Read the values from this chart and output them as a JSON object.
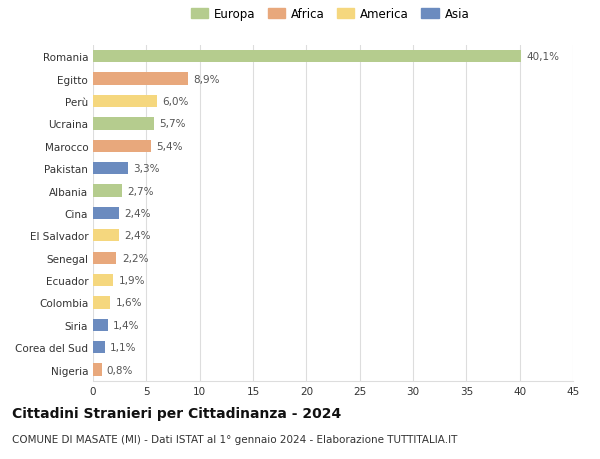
{
  "countries": [
    "Romania",
    "Egitto",
    "Perù",
    "Ucraina",
    "Marocco",
    "Pakistan",
    "Albania",
    "Cina",
    "El Salvador",
    "Senegal",
    "Ecuador",
    "Colombia",
    "Siria",
    "Corea del Sud",
    "Nigeria"
  ],
  "values": [
    40.1,
    8.9,
    6.0,
    5.7,
    5.4,
    3.3,
    2.7,
    2.4,
    2.4,
    2.2,
    1.9,
    1.6,
    1.4,
    1.1,
    0.8
  ],
  "labels": [
    "40,1%",
    "8,9%",
    "6,0%",
    "5,7%",
    "5,4%",
    "3,3%",
    "2,7%",
    "2,4%",
    "2,4%",
    "2,2%",
    "1,9%",
    "1,6%",
    "1,4%",
    "1,1%",
    "0,8%"
  ],
  "regions": [
    "Europa",
    "Africa",
    "America",
    "Europa",
    "Africa",
    "Asia",
    "Europa",
    "Asia",
    "America",
    "Africa",
    "America",
    "America",
    "Asia",
    "Asia",
    "Africa"
  ],
  "colors": {
    "Europa": "#b5cc8e",
    "Africa": "#e8a87c",
    "America": "#f5d77e",
    "Asia": "#6b8bbf"
  },
  "xlim": [
    0,
    45
  ],
  "xticks": [
    0,
    5,
    10,
    15,
    20,
    25,
    30,
    35,
    40,
    45
  ],
  "title": "Cittadini Stranieri per Cittadinanza - 2024",
  "subtitle": "COMUNE DI MASATE (MI) - Dati ISTAT al 1° gennaio 2024 - Elaborazione TUTTITALIA.IT",
  "background_color": "#ffffff",
  "grid_color": "#dddddd",
  "bar_height": 0.55,
  "title_fontsize": 10,
  "subtitle_fontsize": 7.5,
  "tick_fontsize": 7.5,
  "label_fontsize": 7.5,
  "legend_fontsize": 8.5,
  "legend_order": [
    "Europa",
    "Africa",
    "America",
    "Asia"
  ]
}
